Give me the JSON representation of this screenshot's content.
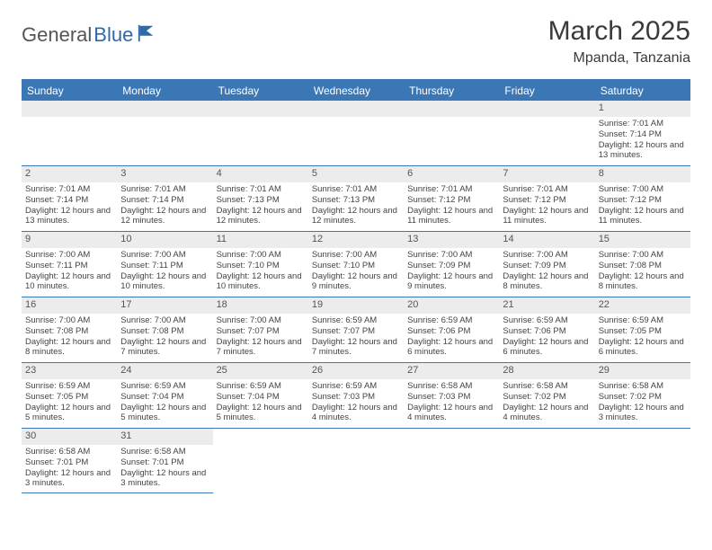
{
  "logo": {
    "part1": "General",
    "part2": "Blue"
  },
  "title": "March 2025",
  "location": "Mpanda, Tanzania",
  "header_bg": "#3b77b5",
  "weekdays": [
    "Sunday",
    "Monday",
    "Tuesday",
    "Wednesday",
    "Thursday",
    "Friday",
    "Saturday"
  ],
  "weeks": [
    [
      {
        "n": "",
        "empty": true
      },
      {
        "n": "",
        "empty": true
      },
      {
        "n": "",
        "empty": true
      },
      {
        "n": "",
        "empty": true
      },
      {
        "n": "",
        "empty": true
      },
      {
        "n": "",
        "empty": true
      },
      {
        "n": "1",
        "sr": "Sunrise: 7:01 AM",
        "ss": "Sunset: 7:14 PM",
        "dl": "Daylight: 12 hours and 13 minutes."
      }
    ],
    [
      {
        "n": "2",
        "sr": "Sunrise: 7:01 AM",
        "ss": "Sunset: 7:14 PM",
        "dl": "Daylight: 12 hours and 13 minutes."
      },
      {
        "n": "3",
        "sr": "Sunrise: 7:01 AM",
        "ss": "Sunset: 7:14 PM",
        "dl": "Daylight: 12 hours and 12 minutes."
      },
      {
        "n": "4",
        "sr": "Sunrise: 7:01 AM",
        "ss": "Sunset: 7:13 PM",
        "dl": "Daylight: 12 hours and 12 minutes."
      },
      {
        "n": "5",
        "sr": "Sunrise: 7:01 AM",
        "ss": "Sunset: 7:13 PM",
        "dl": "Daylight: 12 hours and 12 minutes."
      },
      {
        "n": "6",
        "sr": "Sunrise: 7:01 AM",
        "ss": "Sunset: 7:12 PM",
        "dl": "Daylight: 12 hours and 11 minutes."
      },
      {
        "n": "7",
        "sr": "Sunrise: 7:01 AM",
        "ss": "Sunset: 7:12 PM",
        "dl": "Daylight: 12 hours and 11 minutes."
      },
      {
        "n": "8",
        "sr": "Sunrise: 7:00 AM",
        "ss": "Sunset: 7:12 PM",
        "dl": "Daylight: 12 hours and 11 minutes."
      }
    ],
    [
      {
        "n": "9",
        "sr": "Sunrise: 7:00 AM",
        "ss": "Sunset: 7:11 PM",
        "dl": "Daylight: 12 hours and 10 minutes."
      },
      {
        "n": "10",
        "sr": "Sunrise: 7:00 AM",
        "ss": "Sunset: 7:11 PM",
        "dl": "Daylight: 12 hours and 10 minutes."
      },
      {
        "n": "11",
        "sr": "Sunrise: 7:00 AM",
        "ss": "Sunset: 7:10 PM",
        "dl": "Daylight: 12 hours and 10 minutes."
      },
      {
        "n": "12",
        "sr": "Sunrise: 7:00 AM",
        "ss": "Sunset: 7:10 PM",
        "dl": "Daylight: 12 hours and 9 minutes."
      },
      {
        "n": "13",
        "sr": "Sunrise: 7:00 AM",
        "ss": "Sunset: 7:09 PM",
        "dl": "Daylight: 12 hours and 9 minutes."
      },
      {
        "n": "14",
        "sr": "Sunrise: 7:00 AM",
        "ss": "Sunset: 7:09 PM",
        "dl": "Daylight: 12 hours and 8 minutes."
      },
      {
        "n": "15",
        "sr": "Sunrise: 7:00 AM",
        "ss": "Sunset: 7:08 PM",
        "dl": "Daylight: 12 hours and 8 minutes."
      }
    ],
    [
      {
        "n": "16",
        "sr": "Sunrise: 7:00 AM",
        "ss": "Sunset: 7:08 PM",
        "dl": "Daylight: 12 hours and 8 minutes."
      },
      {
        "n": "17",
        "sr": "Sunrise: 7:00 AM",
        "ss": "Sunset: 7:08 PM",
        "dl": "Daylight: 12 hours and 7 minutes."
      },
      {
        "n": "18",
        "sr": "Sunrise: 7:00 AM",
        "ss": "Sunset: 7:07 PM",
        "dl": "Daylight: 12 hours and 7 minutes."
      },
      {
        "n": "19",
        "sr": "Sunrise: 6:59 AM",
        "ss": "Sunset: 7:07 PM",
        "dl": "Daylight: 12 hours and 7 minutes."
      },
      {
        "n": "20",
        "sr": "Sunrise: 6:59 AM",
        "ss": "Sunset: 7:06 PM",
        "dl": "Daylight: 12 hours and 6 minutes."
      },
      {
        "n": "21",
        "sr": "Sunrise: 6:59 AM",
        "ss": "Sunset: 7:06 PM",
        "dl": "Daylight: 12 hours and 6 minutes."
      },
      {
        "n": "22",
        "sr": "Sunrise: 6:59 AM",
        "ss": "Sunset: 7:05 PM",
        "dl": "Daylight: 12 hours and 6 minutes."
      }
    ],
    [
      {
        "n": "23",
        "sr": "Sunrise: 6:59 AM",
        "ss": "Sunset: 7:05 PM",
        "dl": "Daylight: 12 hours and 5 minutes."
      },
      {
        "n": "24",
        "sr": "Sunrise: 6:59 AM",
        "ss": "Sunset: 7:04 PM",
        "dl": "Daylight: 12 hours and 5 minutes."
      },
      {
        "n": "25",
        "sr": "Sunrise: 6:59 AM",
        "ss": "Sunset: 7:04 PM",
        "dl": "Daylight: 12 hours and 5 minutes."
      },
      {
        "n": "26",
        "sr": "Sunrise: 6:59 AM",
        "ss": "Sunset: 7:03 PM",
        "dl": "Daylight: 12 hours and 4 minutes."
      },
      {
        "n": "27",
        "sr": "Sunrise: 6:58 AM",
        "ss": "Sunset: 7:03 PM",
        "dl": "Daylight: 12 hours and 4 minutes."
      },
      {
        "n": "28",
        "sr": "Sunrise: 6:58 AM",
        "ss": "Sunset: 7:02 PM",
        "dl": "Daylight: 12 hours and 4 minutes."
      },
      {
        "n": "29",
        "sr": "Sunrise: 6:58 AM",
        "ss": "Sunset: 7:02 PM",
        "dl": "Daylight: 12 hours and 3 minutes."
      }
    ],
    [
      {
        "n": "30",
        "sr": "Sunrise: 6:58 AM",
        "ss": "Sunset: 7:01 PM",
        "dl": "Daylight: 12 hours and 3 minutes."
      },
      {
        "n": "31",
        "sr": "Sunrise: 6:58 AM",
        "ss": "Sunset: 7:01 PM",
        "dl": "Daylight: 12 hours and 3 minutes."
      },
      {
        "n": "",
        "empty": true,
        "noborder": true
      },
      {
        "n": "",
        "empty": true,
        "noborder": true
      },
      {
        "n": "",
        "empty": true,
        "noborder": true
      },
      {
        "n": "",
        "empty": true,
        "noborder": true
      },
      {
        "n": "",
        "empty": true,
        "noborder": true
      }
    ]
  ]
}
